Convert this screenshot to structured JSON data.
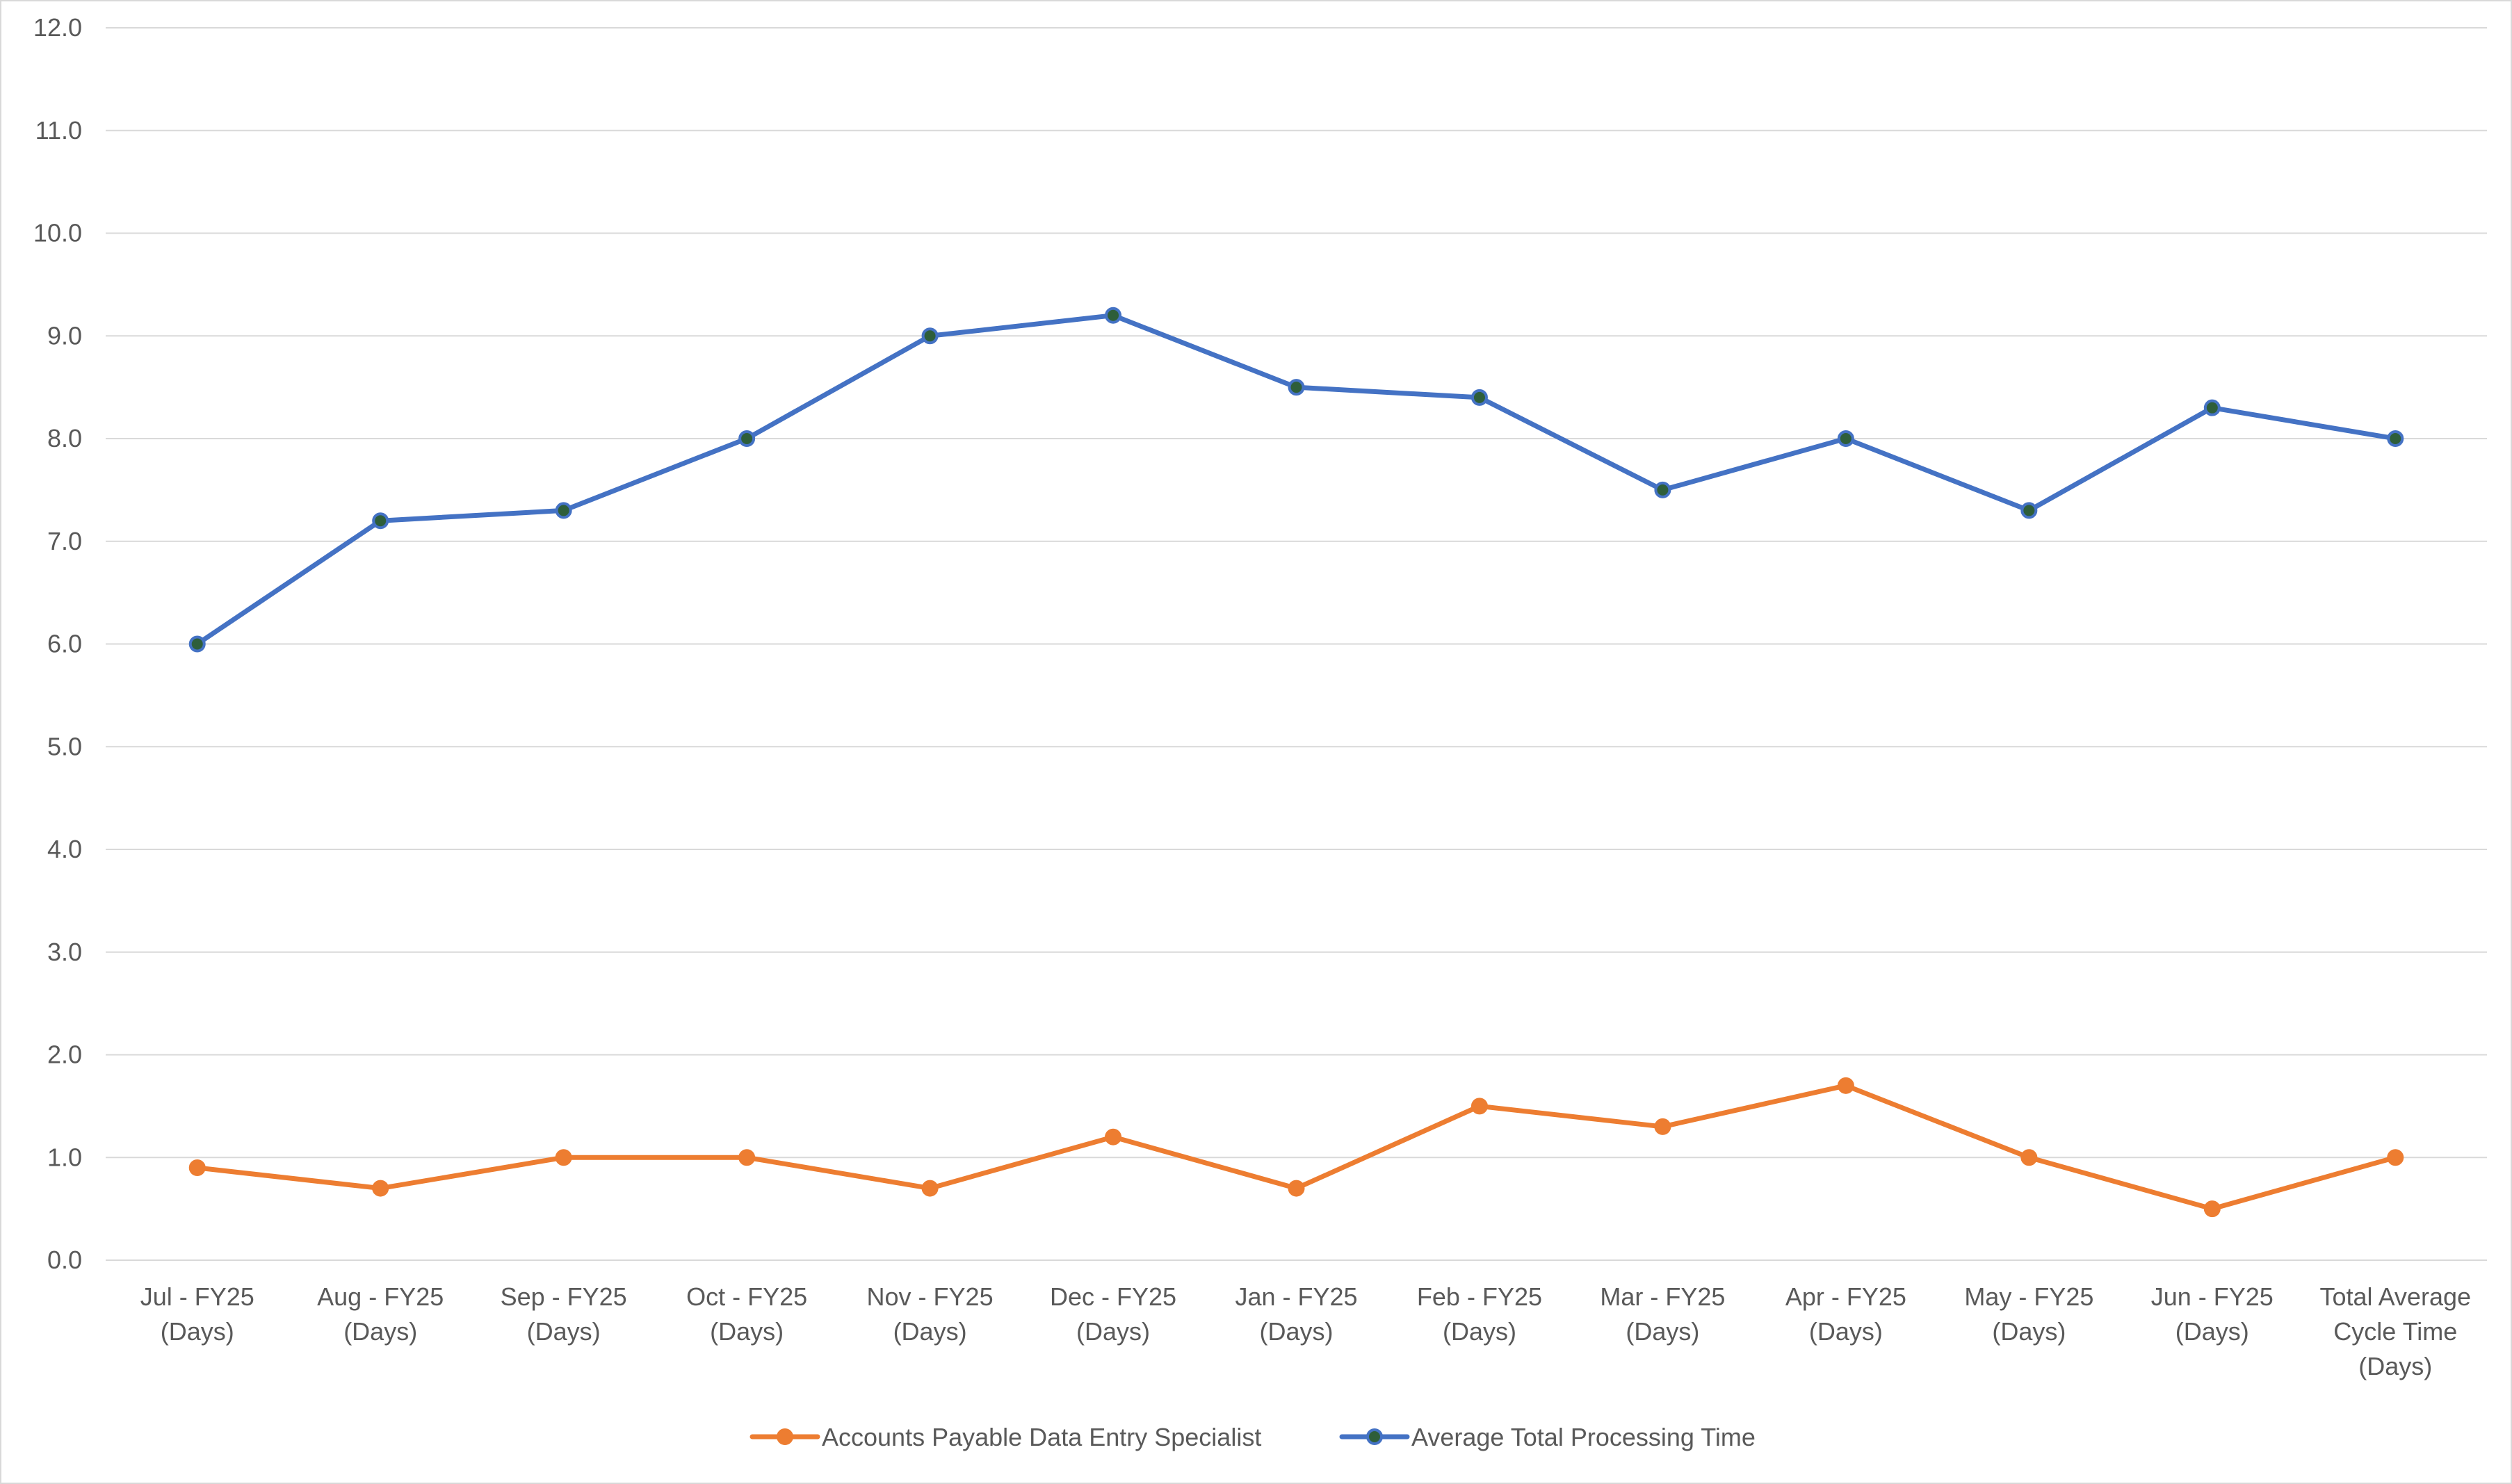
{
  "chart_data": {
    "type": "line",
    "categories": [
      [
        "Jul - FY25",
        "(Days)"
      ],
      [
        "Aug - FY25",
        "(Days)"
      ],
      [
        "Sep - FY25",
        "(Days)"
      ],
      [
        "Oct - FY25",
        "(Days)"
      ],
      [
        "Nov - FY25",
        "(Days)"
      ],
      [
        "Dec - FY25",
        "(Days)"
      ],
      [
        "Jan - FY25",
        "(Days)"
      ],
      [
        "Feb - FY25",
        "(Days)"
      ],
      [
        "Mar - FY25",
        "(Days)"
      ],
      [
        "Apr - FY25",
        "(Days)"
      ],
      [
        "May - FY25",
        "(Days)"
      ],
      [
        "Jun - FY25",
        "(Days)"
      ],
      [
        "Total Average",
        "Cycle Time",
        "(Days)"
      ]
    ],
    "series": [
      {
        "name": "Accounts Payable Data Entry Specialist",
        "color": "#ED7D31",
        "marker_fill": "#ED7D31",
        "values": [
          0.9,
          0.7,
          1.0,
          1.0,
          0.7,
          1.2,
          0.7,
          1.5,
          1.3,
          1.7,
          1.0,
          0.5,
          1.0
        ]
      },
      {
        "name": "Average Total Processing Time",
        "color": "#4472C4",
        "marker_fill": "#2E5E3A",
        "values": [
          6.0,
          7.2,
          7.3,
          8.0,
          9.0,
          9.2,
          8.5,
          8.4,
          7.5,
          8.0,
          7.3,
          8.3,
          8.0
        ]
      }
    ],
    "yticks": [
      "0.0",
      "1.0",
      "2.0",
      "3.0",
      "4.0",
      "5.0",
      "6.0",
      "7.0",
      "8.0",
      "9.0",
      "10.0",
      "11.0",
      "12.0"
    ],
    "ylim": [
      0,
      12
    ],
    "grid": true,
    "legend_position": "bottom",
    "gridline_color": "#d9d9d9",
    "text_color": "#595959"
  }
}
